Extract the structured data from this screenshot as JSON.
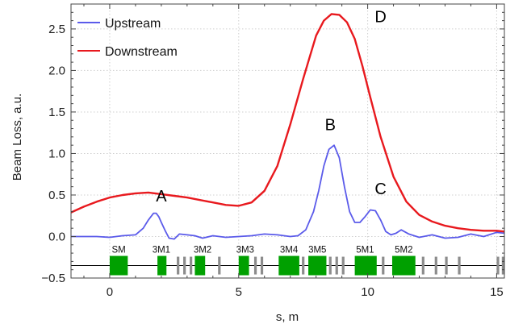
{
  "chart_data": {
    "type": "line",
    "xlabel": "s, m",
    "ylabel": "Beam Loss, a.u.",
    "xlim": [
      -1.5,
      15.3
    ],
    "ylim": [
      -0.5,
      2.8
    ],
    "x_ticks": [
      0,
      5,
      10,
      15
    ],
    "y_ticks": [
      -0.5,
      0.0,
      0.5,
      1.0,
      1.5,
      2.0,
      2.5
    ],
    "y_tick_labels": [
      "−0.5",
      "0.0",
      "0.5",
      "1.0",
      "1.5",
      "2.0",
      "2.5"
    ],
    "grid": true,
    "legend_position": "top-left",
    "series": [
      {
        "name": "Upstream",
        "color": "#5b5bea",
        "x": [
          -1.5,
          -1.0,
          -0.5,
          0.0,
          0.5,
          1.0,
          1.3,
          1.5,
          1.7,
          1.8,
          1.9,
          2.0,
          2.15,
          2.3,
          2.5,
          2.7,
          3.0,
          3.3,
          3.6,
          4.0,
          4.5,
          5.0,
          5.5,
          6.0,
          6.5,
          7.0,
          7.3,
          7.6,
          7.9,
          8.1,
          8.3,
          8.5,
          8.7,
          8.9,
          9.1,
          9.3,
          9.5,
          9.7,
          9.9,
          10.1,
          10.3,
          10.5,
          10.7,
          10.9,
          11.1,
          11.3,
          11.6,
          12.0,
          12.5,
          13.0,
          13.5,
          14.0,
          14.5,
          15.0,
          15.3
        ],
        "y": [
          0.0,
          0.0,
          0.0,
          -0.01,
          0.01,
          0.02,
          0.1,
          0.2,
          0.28,
          0.28,
          0.24,
          0.17,
          0.07,
          -0.02,
          -0.03,
          0.03,
          0.02,
          0.01,
          -0.02,
          0.01,
          -0.01,
          0.0,
          0.01,
          0.03,
          0.02,
          0.0,
          0.01,
          0.08,
          0.3,
          0.55,
          0.85,
          1.05,
          1.1,
          0.95,
          0.6,
          0.3,
          0.17,
          0.17,
          0.24,
          0.32,
          0.31,
          0.2,
          0.06,
          0.02,
          0.04,
          0.08,
          0.03,
          -0.01,
          0.02,
          -0.02,
          -0.01,
          0.03,
          0.0,
          0.05,
          0.04
        ]
      },
      {
        "name": "Downstream",
        "color": "#e8191e",
        "x": [
          -1.5,
          -1.0,
          -0.5,
          0.0,
          0.5,
          1.0,
          1.5,
          2.0,
          2.5,
          3.0,
          3.5,
          4.0,
          4.5,
          5.0,
          5.5,
          6.0,
          6.5,
          7.0,
          7.5,
          8.0,
          8.3,
          8.6,
          8.9,
          9.2,
          9.5,
          9.8,
          10.1,
          10.5,
          11.0,
          11.5,
          12.0,
          12.5,
          13.0,
          13.5,
          14.0,
          14.5,
          15.0,
          15.3
        ],
        "y": [
          0.29,
          0.36,
          0.42,
          0.47,
          0.5,
          0.52,
          0.53,
          0.51,
          0.49,
          0.47,
          0.44,
          0.41,
          0.38,
          0.37,
          0.41,
          0.55,
          0.85,
          1.35,
          1.9,
          2.42,
          2.6,
          2.68,
          2.67,
          2.58,
          2.38,
          2.05,
          1.68,
          1.2,
          0.72,
          0.42,
          0.26,
          0.18,
          0.13,
          0.1,
          0.08,
          0.07,
          0.07,
          0.06
        ]
      }
    ],
    "annotations": [
      {
        "label": "A",
        "x": 2.0,
        "y": 0.42
      },
      {
        "label": "B",
        "x": 8.55,
        "y": 1.28
      },
      {
        "label": "C",
        "x": 10.5,
        "y": 0.51
      },
      {
        "label": "D",
        "x": 10.5,
        "y": 2.58
      }
    ],
    "magnet_layout": {
      "baseline_y": -0.35,
      "block_color": "#00a000",
      "gap_color": "#8c8c8c",
      "labels": [
        {
          "text": "SM",
          "x": 0.35
        },
        {
          "text": "3M1",
          "x": 2.0
        },
        {
          "text": "3M2",
          "x": 3.6
        },
        {
          "text": "3M3",
          "x": 5.25
        },
        {
          "text": "3M4",
          "x": 6.95
        },
        {
          "text": "3M5",
          "x": 8.05
        },
        {
          "text": "5M1",
          "x": 9.9
        },
        {
          "text": "5M2",
          "x": 11.4
        }
      ],
      "green_blocks": [
        [
          0.0,
          0.7
        ],
        [
          1.85,
          2.2
        ],
        [
          3.3,
          3.7
        ],
        [
          5.0,
          5.4
        ],
        [
          6.55,
          7.35
        ],
        [
          7.7,
          8.4
        ],
        [
          9.5,
          10.35
        ],
        [
          10.95,
          11.85
        ]
      ],
      "gray_blocks": [
        [
          2.6,
          2.7
        ],
        [
          2.85,
          2.95
        ],
        [
          3.1,
          3.2
        ],
        [
          4.2,
          4.3
        ],
        [
          5.6,
          5.7
        ],
        [
          5.85,
          5.95
        ],
        [
          7.45,
          7.55
        ],
        [
          8.5,
          8.6
        ],
        [
          8.75,
          8.85
        ],
        [
          9.0,
          9.1
        ],
        [
          10.55,
          10.65
        ],
        [
          12.1,
          12.2
        ],
        [
          12.6,
          12.7
        ],
        [
          13.0,
          13.1
        ],
        [
          13.5,
          13.6
        ],
        [
          15.0,
          15.1
        ],
        [
          15.2,
          15.3
        ]
      ]
    }
  }
}
